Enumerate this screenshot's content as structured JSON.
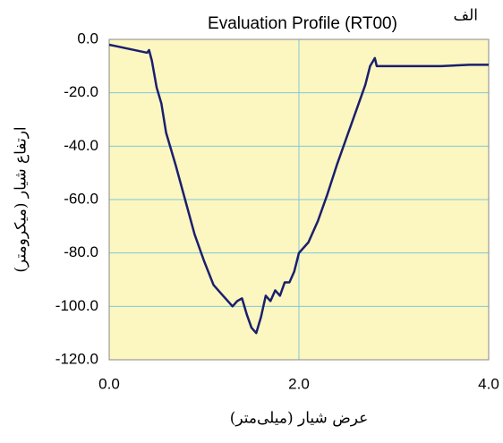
{
  "chart_data": {
    "type": "line",
    "title": "Evaluation Profile (RT00)",
    "panel_label": "الف",
    "x_label": "عرض شیار (میلی‌متر)",
    "y_label": "ارتفاع شیار (میکرومتر)",
    "x": [
      0,
      0.4,
      0.42,
      0.45,
      0.5,
      0.55,
      0.6,
      0.7,
      0.8,
      0.9,
      1.0,
      1.1,
      1.2,
      1.3,
      1.35,
      1.4,
      1.45,
      1.5,
      1.55,
      1.6,
      1.65,
      1.7,
      1.75,
      1.8,
      1.85,
      1.9,
      1.95,
      2.0,
      2.1,
      2.2,
      2.3,
      2.4,
      2.5,
      2.6,
      2.7,
      2.75,
      2.8,
      2.82,
      3.0,
      3.5,
      3.8,
      4.0
    ],
    "series": [
      {
        "color": "#1a1f6e",
        "values": [
          -2,
          -5,
          -4,
          -8,
          -18,
          -24,
          -35,
          -47,
          -60,
          -73,
          -83,
          -92,
          -96,
          -100,
          -98,
          -97,
          -103,
          -108,
          -110,
          -104,
          -96,
          -98,
          -94,
          -96,
          -91,
          -91,
          -87,
          -80,
          -76,
          -68,
          -58,
          -47,
          -37,
          -27,
          -17,
          -10,
          -7,
          -10,
          -10,
          -10,
          -9.5,
          -9.5
        ]
      }
    ],
    "xlim": [
      0,
      4
    ],
    "ylim": [
      -120,
      0
    ],
    "xticks": [
      {
        "value": 0,
        "label": "0.0"
      },
      {
        "value": 2,
        "label": "2.0"
      },
      {
        "value": 4,
        "label": "4.0"
      }
    ],
    "yticks": [
      {
        "value": 0,
        "label": "0.0"
      },
      {
        "value": -20,
        "label": "-20.0"
      },
      {
        "value": -40,
        "label": "-40.0"
      },
      {
        "value": -60,
        "label": "-60.0"
      },
      {
        "value": -80,
        "label": "-80.0"
      },
      {
        "value": -100,
        "label": "-100.0"
      },
      {
        "value": -120,
        "label": "-120.0"
      }
    ],
    "grid": true,
    "background": "#fcf6c0"
  }
}
